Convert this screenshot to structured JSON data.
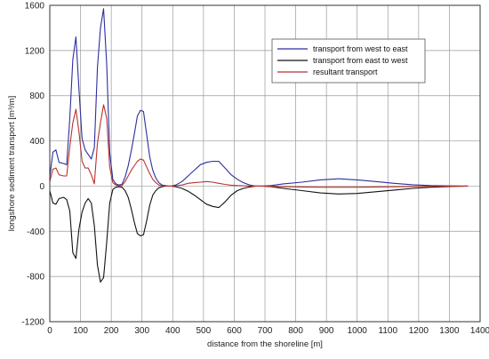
{
  "chart_data": {
    "type": "line",
    "xlabel": "distance from the shoreline [m]",
    "ylabel": "longshore sediment transport [m³/m]",
    "xlim": [
      0,
      1400
    ],
    "ylim": [
      -1200,
      1600
    ],
    "xticks": [
      "0",
      "100",
      "200",
      "300",
      "400",
      "500",
      "600",
      "700",
      "800",
      "900",
      "1000",
      "1100",
      "1200",
      "1300",
      "1400"
    ],
    "yticks": [
      "1600",
      "1200",
      "800",
      "400",
      "0",
      "-400",
      "-800",
      "-1200"
    ],
    "grid": true,
    "legend_position": "top-right",
    "series": [
      {
        "name": "transport from west to east",
        "color": "#2b2f9e",
        "x": [
          0,
          10,
          20,
          30,
          45,
          55,
          65,
          75,
          85,
          95,
          105,
          115,
          125,
          135,
          145,
          155,
          165,
          175,
          185,
          195,
          205,
          215,
          225,
          235,
          245,
          255,
          265,
          275,
          285,
          295,
          305,
          315,
          325,
          335,
          345,
          355,
          365,
          375,
          385,
          395,
          410,
          430,
          450,
          470,
          490,
          510,
          530,
          550,
          570,
          590,
          610,
          630,
          650,
          670,
          690,
          720,
          760,
          820,
          880,
          940,
          1000,
          1060,
          1120,
          1180,
          1240,
          1300,
          1360
        ],
        "values": [
          80,
          300,
          320,
          210,
          200,
          190,
          600,
          1120,
          1320,
          860,
          420,
          320,
          280,
          240,
          340,
          1050,
          1400,
          1570,
          1080,
          300,
          60,
          20,
          10,
          15,
          80,
          180,
          310,
          460,
          620,
          670,
          660,
          460,
          260,
          140,
          70,
          30,
          10,
          5,
          0,
          0,
          10,
          40,
          90,
          140,
          190,
          210,
          220,
          220,
          160,
          100,
          60,
          30,
          10,
          0,
          0,
          5,
          20,
          35,
          55,
          65,
          55,
          40,
          25,
          12,
          5,
          2,
          0
        ]
      },
      {
        "name": "transport from east to west",
        "color": "#111111",
        "x": [
          0,
          10,
          20,
          30,
          45,
          55,
          65,
          75,
          85,
          95,
          105,
          115,
          125,
          135,
          145,
          155,
          165,
          175,
          185,
          195,
          205,
          215,
          225,
          235,
          245,
          255,
          265,
          275,
          285,
          295,
          305,
          315,
          325,
          335,
          345,
          355,
          365,
          375,
          385,
          395,
          410,
          430,
          450,
          470,
          490,
          510,
          530,
          550,
          570,
          590,
          610,
          630,
          650,
          670,
          690,
          720,
          760,
          820,
          880,
          940,
          1000,
          1060,
          1120,
          1180,
          1240,
          1300,
          1360
        ],
        "values": [
          -40,
          -150,
          -160,
          -110,
          -100,
          -120,
          -220,
          -590,
          -640,
          -380,
          -230,
          -150,
          -110,
          -150,
          -350,
          -700,
          -850,
          -810,
          -500,
          -150,
          -30,
          -10,
          -5,
          -10,
          -40,
          -100,
          -200,
          -320,
          -420,
          -440,
          -430,
          -310,
          -170,
          -80,
          -40,
          -15,
          -5,
          0,
          0,
          0,
          -5,
          -20,
          -45,
          -80,
          -120,
          -160,
          -180,
          -190,
          -140,
          -80,
          -40,
          -20,
          -8,
          0,
          0,
          -5,
          -20,
          -40,
          -60,
          -70,
          -65,
          -50,
          -35,
          -20,
          -10,
          -4,
          0
        ]
      },
      {
        "name": "resultant transport",
        "color": "#b8322e",
        "x": [
          0,
          10,
          20,
          30,
          45,
          55,
          65,
          75,
          85,
          95,
          105,
          115,
          125,
          135,
          145,
          155,
          165,
          175,
          185,
          195,
          205,
          215,
          225,
          235,
          245,
          255,
          265,
          275,
          285,
          295,
          305,
          315,
          325,
          335,
          345,
          355,
          365,
          375,
          385,
          395,
          410,
          430,
          450,
          470,
          490,
          510,
          530,
          550,
          570,
          590,
          610,
          630,
          650,
          670,
          690,
          720,
          760,
          820,
          880,
          940,
          1000,
          1060,
          1120,
          1180,
          1240,
          1300,
          1360
        ],
        "values": [
          40,
          150,
          160,
          100,
          90,
          90,
          350,
          560,
          680,
          480,
          220,
          160,
          160,
          100,
          20,
          380,
          560,
          720,
          600,
          170,
          30,
          10,
          5,
          5,
          40,
          90,
          140,
          180,
          220,
          240,
          230,
          170,
          110,
          60,
          30,
          10,
          5,
          2,
          0,
          0,
          3,
          10,
          25,
          30,
          35,
          40,
          35,
          25,
          15,
          8,
          5,
          3,
          0,
          0,
          0,
          -2,
          -5,
          -8,
          -10,
          -10,
          -10,
          -8,
          -6,
          -4,
          -2,
          -1,
          0
        ]
      }
    ]
  }
}
